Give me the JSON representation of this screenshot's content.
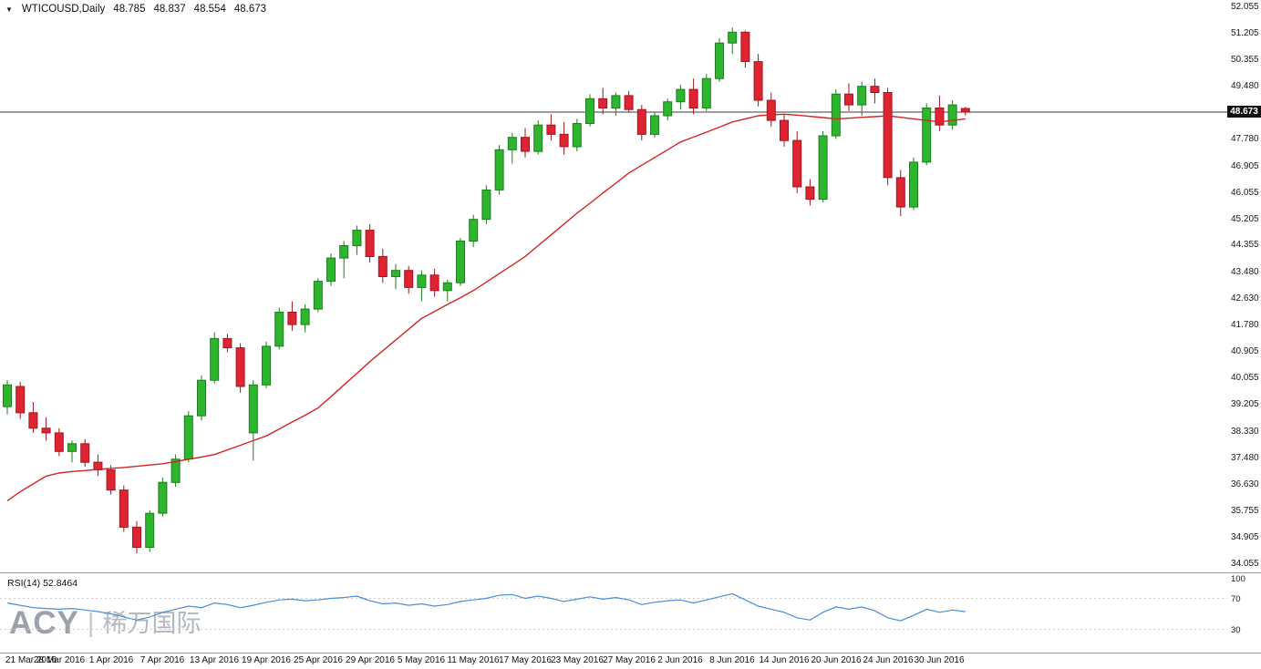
{
  "header": {
    "dropdown_icon": "▼",
    "symbol": "WTICOUSD,Daily",
    "open": "48.785",
    "high": "48.837",
    "low": "48.554",
    "close": "48.673"
  },
  "indicator_label": "RSI(14) 52.8464",
  "watermark": {
    "brand": "ACY",
    "separator": "|",
    "name_cn": "稀万国际"
  },
  "price_axis": {
    "labels": [
      "52.055",
      "51.205",
      "50.355",
      "49.480",
      "47.780",
      "46.905",
      "46.055",
      "45.205",
      "44.355",
      "43.480",
      "42.630",
      "41.780",
      "40.905",
      "40.055",
      "39.205",
      "38.330",
      "37.480",
      "36.630",
      "35.755",
      "34.905",
      "34.055"
    ],
    "current": "48.673"
  },
  "rsi_axis_labels": [
    "100",
    "70",
    "30"
  ],
  "colors": {
    "bull": "#2db52d",
    "bull_border": "#1e7d1e",
    "bear": "#de2433",
    "bear_border": "#a5151f",
    "ma": "#d42424",
    "rsi": "#4a8fd4",
    "price_line": "#3c3c3c",
    "badge_bg": "#111111",
    "badge_text": "#ffffff",
    "separator": "#9c9c9c",
    "rsi_level": "#cccccc"
  },
  "chart_data": {
    "type": "candlestick",
    "title": "WTICOUSD Daily candlestick chart with red moving-average overlay and RSI(14) sub-panel",
    "symbol": "WTICOUSD",
    "timeframe": "Daily",
    "y_range": [
      34.055,
      52.055
    ],
    "y_tick_step": 0.85,
    "current_price": 48.673,
    "last_quote": {
      "open": 48.785,
      "high": 48.837,
      "low": 48.554,
      "close": 48.673
    },
    "x_labels": [
      {
        "i": 0,
        "t": "21 Mar 2016"
      },
      {
        "i": 4,
        "t": "28 Mar 2016"
      },
      {
        "i": 8,
        "t": "1 Apr 2016"
      },
      {
        "i": 12,
        "t": "7 Apr 2016"
      },
      {
        "i": 16,
        "t": "13 Apr 2016"
      },
      {
        "i": 20,
        "t": "19 Apr 2016"
      },
      {
        "i": 24,
        "t": "25 Apr 2016"
      },
      {
        "i": 28,
        "t": "29 Apr 2016"
      },
      {
        "i": 32,
        "t": "5 May 2016"
      },
      {
        "i": 36,
        "t": "11 May 2016"
      },
      {
        "i": 40,
        "t": "17 May 2016"
      },
      {
        "i": 44,
        "t": "23 May 2016"
      },
      {
        "i": 48,
        "t": "27 May 2016"
      },
      {
        "i": 52,
        "t": "2 Jun 2016"
      },
      {
        "i": 56,
        "t": "8 Jun 2016"
      },
      {
        "i": 60,
        "t": "14 Jun 2016"
      },
      {
        "i": 64,
        "t": "20 Jun 2016"
      },
      {
        "i": 68,
        "t": "24 Jun 2016"
      },
      {
        "i": 72,
        "t": "30 Jun 2016"
      }
    ],
    "candles": [
      [
        39.15,
        40.0,
        38.9,
        39.85
      ],
      [
        39.8,
        39.95,
        38.75,
        38.95
      ],
      [
        38.95,
        39.3,
        38.3,
        38.45
      ],
      [
        38.45,
        38.8,
        38.05,
        38.3
      ],
      [
        38.3,
        38.45,
        37.55,
        37.7
      ],
      [
        37.7,
        38.05,
        37.35,
        37.95
      ],
      [
        37.95,
        38.1,
        37.2,
        37.35
      ],
      [
        37.35,
        37.6,
        36.9,
        37.1
      ],
      [
        37.1,
        37.25,
        36.3,
        36.45
      ],
      [
        36.45,
        36.6,
        35.1,
        35.25
      ],
      [
        35.25,
        35.45,
        34.4,
        34.6
      ],
      [
        34.6,
        35.8,
        34.45,
        35.7
      ],
      [
        35.7,
        36.85,
        35.6,
        36.7
      ],
      [
        36.7,
        37.6,
        36.55,
        37.45
      ],
      [
        37.45,
        39.0,
        37.35,
        38.85
      ],
      [
        38.85,
        40.15,
        38.7,
        40.0
      ],
      [
        40.0,
        41.55,
        39.9,
        41.35
      ],
      [
        41.35,
        41.5,
        40.9,
        41.05
      ],
      [
        41.05,
        41.2,
        39.6,
        39.8
      ],
      [
        38.3,
        40.0,
        37.4,
        39.85
      ],
      [
        39.85,
        41.25,
        39.75,
        41.1
      ],
      [
        41.1,
        42.35,
        41.0,
        42.2
      ],
      [
        42.2,
        42.55,
        41.6,
        41.8
      ],
      [
        41.8,
        42.45,
        41.55,
        42.3
      ],
      [
        42.3,
        43.3,
        42.2,
        43.2
      ],
      [
        43.2,
        44.1,
        43.05,
        43.95
      ],
      [
        43.95,
        44.5,
        43.3,
        44.35
      ],
      [
        44.35,
        45.0,
        44.05,
        44.85
      ],
      [
        44.85,
        45.05,
        43.8,
        44.0
      ],
      [
        44.0,
        44.25,
        43.15,
        43.35
      ],
      [
        43.35,
        43.75,
        42.95,
        43.55
      ],
      [
        43.55,
        43.7,
        42.8,
        43.0
      ],
      [
        43.0,
        43.55,
        42.55,
        43.4
      ],
      [
        43.4,
        43.6,
        42.7,
        42.9
      ],
      [
        42.9,
        43.25,
        42.55,
        43.15
      ],
      [
        43.15,
        44.6,
        43.05,
        44.5
      ],
      [
        44.5,
        45.35,
        44.3,
        45.2
      ],
      [
        45.2,
        46.3,
        45.05,
        46.15
      ],
      [
        46.15,
        47.6,
        46.0,
        47.45
      ],
      [
        47.45,
        48.0,
        47.0,
        47.85
      ],
      [
        47.85,
        48.15,
        47.2,
        47.4
      ],
      [
        47.4,
        48.4,
        47.3,
        48.25
      ],
      [
        48.25,
        48.6,
        47.75,
        47.95
      ],
      [
        47.95,
        48.35,
        47.3,
        47.55
      ],
      [
        47.55,
        48.45,
        47.4,
        48.3
      ],
      [
        48.3,
        49.25,
        48.2,
        49.1
      ],
      [
        49.1,
        49.45,
        48.6,
        48.8
      ],
      [
        48.8,
        49.3,
        48.55,
        49.2
      ],
      [
        49.2,
        49.35,
        48.65,
        48.75
      ],
      [
        48.75,
        48.9,
        47.75,
        47.95
      ],
      [
        47.95,
        48.65,
        47.85,
        48.55
      ],
      [
        48.55,
        49.1,
        48.4,
        49.0
      ],
      [
        49.0,
        49.55,
        48.75,
        49.4
      ],
      [
        49.4,
        49.75,
        48.6,
        48.8
      ],
      [
        48.8,
        49.9,
        48.7,
        49.75
      ],
      [
        49.75,
        51.05,
        49.65,
        50.9
      ],
      [
        50.9,
        51.4,
        50.55,
        51.25
      ],
      [
        51.25,
        51.3,
        50.1,
        50.3
      ],
      [
        50.3,
        50.55,
        48.85,
        49.05
      ],
      [
        49.05,
        49.3,
        48.2,
        48.4
      ],
      [
        48.4,
        48.6,
        47.55,
        47.75
      ],
      [
        47.75,
        48.05,
        46.05,
        46.25
      ],
      [
        46.25,
        46.5,
        45.65,
        45.85
      ],
      [
        45.85,
        48.05,
        45.75,
        47.9
      ],
      [
        47.9,
        49.4,
        47.8,
        49.25
      ],
      [
        49.25,
        49.6,
        48.7,
        48.9
      ],
      [
        48.9,
        49.65,
        48.55,
        49.5
      ],
      [
        49.5,
        49.75,
        48.95,
        49.3
      ],
      [
        49.3,
        49.45,
        46.3,
        46.55
      ],
      [
        46.55,
        46.8,
        45.3,
        45.6
      ],
      [
        45.6,
        47.2,
        45.5,
        47.05
      ],
      [
        47.05,
        48.95,
        46.95,
        48.8
      ],
      [
        48.8,
        49.2,
        48.05,
        48.25
      ],
      [
        48.25,
        49.05,
        48.1,
        48.9
      ],
      [
        48.785,
        48.837,
        48.554,
        48.673
      ]
    ],
    "ma": [
      36.1,
      36.4,
      36.65,
      36.9,
      37.0,
      37.05,
      37.08,
      37.12,
      37.15,
      37.18,
      37.22,
      37.26,
      37.3,
      37.37,
      37.45,
      37.52,
      37.6,
      37.75,
      37.9,
      38.05,
      38.2,
      38.42,
      38.65,
      38.87,
      39.1,
      39.47,
      39.85,
      40.22,
      40.6,
      40.95,
      41.3,
      41.65,
      42.0,
      42.22,
      42.45,
      42.67,
      42.9,
      43.17,
      43.45,
      43.72,
      44.0,
      44.35,
      44.7,
      45.05,
      45.4,
      45.72,
      46.05,
      46.37,
      46.7,
      46.95,
      47.2,
      47.45,
      47.7,
      47.86,
      48.02,
      48.18,
      48.35,
      48.45,
      48.55,
      48.58,
      48.6,
      48.57,
      48.53,
      48.49,
      48.45,
      48.47,
      48.5,
      48.52,
      48.55,
      48.5,
      48.45,
      48.4,
      48.35,
      48.4,
      48.45
    ],
    "rsi": {
      "period": 14,
      "current": 52.8464,
      "range": [
        0,
        100
      ],
      "levels": [
        70,
        30
      ],
      "values": [
        64,
        61,
        58,
        57,
        56,
        57,
        55,
        53,
        50,
        46,
        42,
        46,
        52,
        56,
        60,
        58,
        64,
        62,
        58,
        61,
        65,
        68,
        69,
        67,
        68,
        70,
        71,
        73,
        67,
        63,
        64,
        61,
        63,
        60,
        62,
        66,
        68,
        70,
        74,
        75,
        70,
        73,
        70,
        66,
        69,
        72,
        69,
        71,
        68,
        62,
        65,
        67,
        68,
        64,
        68,
        72,
        76,
        68,
        60,
        56,
        52,
        45,
        42,
        52,
        59,
        56,
        59,
        54,
        45,
        41,
        48,
        56,
        52,
        55,
        52.85
      ]
    }
  }
}
